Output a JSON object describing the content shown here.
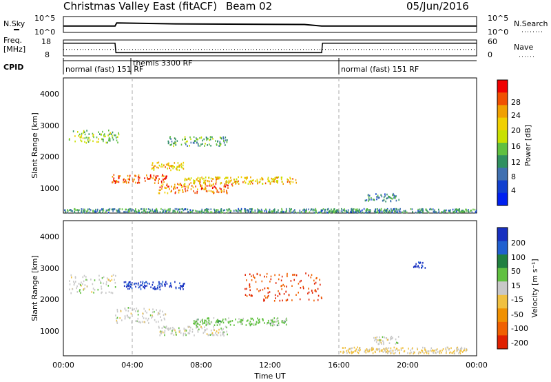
{
  "header": {
    "title": "Christmas Valley East (fitACF)",
    "beam": "Beam 02",
    "date": "05/Jun/2016"
  },
  "panels": {
    "nsky": {
      "label": "N.Sky",
      "ticks_left": [
        "10^5",
        "10^0"
      ],
      "ticks_right": [
        "10^5",
        "10^0"
      ],
      "right_label": "N.Search"
    },
    "freq": {
      "label_line1": "Freq.",
      "label_line2": "[MHz]",
      "ticks_left": [
        "18",
        "8"
      ],
      "ticks_right": [
        "60",
        "0"
      ],
      "right_label": "Nave"
    },
    "cpid": {
      "label": "CPID",
      "segments": [
        "normal (fast) 151 RF",
        "themis 3300 RF",
        "normal (fast) 151 RF"
      ]
    }
  },
  "power_colorbar": {
    "label": "Power [dB]",
    "ticks": [
      "28",
      "24",
      "20",
      "16",
      "12",
      "8",
      "4"
    ],
    "colors": [
      "#f00000",
      "#f05000",
      "#f0a000",
      "#f0d000",
      "#c8e000",
      "#60c040",
      "#309060",
      "#4070b0",
      "#1040d0",
      "#0020f0"
    ]
  },
  "velocity_colorbar": {
    "label": "Velocity [m s⁻¹]",
    "ticks": [
      "200",
      "100",
      "50",
      "15",
      "-15",
      "-50",
      "-100",
      "-200"
    ],
    "colors": [
      "#1830c0",
      "#2060d0",
      "#208040",
      "#60c040",
      "#c8c8c8",
      "#f0c040",
      "#f09000",
      "#f06000",
      "#e02000"
    ]
  },
  "xaxis": {
    "label": "Time UT",
    "ticks": [
      "00:00",
      "04:00",
      "08:00",
      "12:00",
      "16:00",
      "20:00",
      "00:00"
    ]
  },
  "yaxis": {
    "label": "Slant Range [km]",
    "ticks": [
      "4000",
      "3000",
      "2000",
      "1000"
    ]
  },
  "chart_data": [
    {
      "type": "line",
      "title": "N.Sky",
      "x_units": "hours UT",
      "series": [
        {
          "name": "N.Sky",
          "x": [
            0,
            3,
            3.1,
            6.5,
            14,
            15,
            24
          ],
          "y": [
            2.0,
            2.0,
            3.0,
            2.7,
            2.5,
            2.0,
            2.0
          ]
        }
      ]
    },
    {
      "type": "line",
      "title": "Freq.",
      "x_units": "hours UT",
      "series": [
        {
          "name": "Freq.",
          "x": [
            0,
            3,
            3.05,
            15,
            15.05,
            24
          ],
          "y": [
            16,
            16,
            10,
            10,
            16,
            16
          ]
        },
        {
          "name": "Nave",
          "x": [
            0,
            24
          ],
          "y": [
            24,
            24
          ]
        }
      ]
    },
    {
      "type": "heatmap",
      "title": "Power [dB]",
      "xlabel": "Time UT",
      "ylabel": "Slant Range [km]",
      "xlim": [
        0,
        24
      ],
      "ylim": [
        180,
        4500
      ],
      "zlim": [
        0,
        30
      ],
      "features": [
        {
          "t_start": 0.3,
          "t_end": 3.2,
          "range_center_km": 2650,
          "range_width_km": 400,
          "power_db": 14
        },
        {
          "t_start": 2.8,
          "t_end": 6.0,
          "range_center_km": 1300,
          "range_width_km": 280,
          "power_db": 26
        },
        {
          "t_start": 5.5,
          "t_end": 9.8,
          "range_center_km": 1000,
          "range_width_km": 320,
          "power_db": 24
        },
        {
          "t_start": 5.0,
          "t_end": 7.0,
          "range_center_km": 1700,
          "range_width_km": 250,
          "power_db": 20
        },
        {
          "t_start": 7.0,
          "t_end": 13.5,
          "range_center_km": 1250,
          "range_width_km": 220,
          "power_db": 20
        },
        {
          "t_start": 6.0,
          "t_end": 9.5,
          "range_center_km": 2500,
          "range_width_km": 300,
          "power_db": 12
        },
        {
          "t_start": 17.5,
          "t_end": 19.5,
          "range_center_km": 700,
          "range_width_km": 250,
          "power_db": 10
        },
        {
          "t_start": 0.0,
          "t_end": 24.0,
          "range_center_km": 280,
          "range_width_km": 120,
          "power_db": 10
        }
      ]
    },
    {
      "type": "heatmap",
      "title": "Velocity [m s⁻¹]",
      "xlabel": "Time UT",
      "ylabel": "Slant Range [km]",
      "xlim": [
        0,
        24
      ],
      "ylim": [
        180,
        4500
      ],
      "zlim": [
        -200,
        200
      ],
      "features": [
        {
          "t_start": 0.3,
          "t_end": 3.0,
          "range_center_km": 2500,
          "range_width_km": 600,
          "velocity": 0
        },
        {
          "t_start": 3.0,
          "t_end": 6.0,
          "range_center_km": 1500,
          "range_width_km": 500,
          "velocity": 0
        },
        {
          "t_start": 5.5,
          "t_end": 9.5,
          "range_center_km": 1000,
          "range_width_km": 300,
          "velocity": 0
        },
        {
          "t_start": 7.5,
          "t_end": 13.0,
          "range_center_km": 1300,
          "range_width_km": 250,
          "velocity": 40
        },
        {
          "t_start": 3.5,
          "t_end": 7.0,
          "range_center_km": 2450,
          "range_width_km": 250,
          "velocity": 170
        },
        {
          "t_start": 10.5,
          "t_end": 15.0,
          "range_center_km": 2400,
          "range_width_km": 900,
          "velocity": -160
        },
        {
          "t_start": 16.0,
          "t_end": 23.5,
          "range_center_km": 380,
          "range_width_km": 200,
          "velocity": -30
        },
        {
          "t_start": 18.0,
          "t_end": 19.5,
          "range_center_km": 700,
          "range_width_km": 250,
          "velocity": 0
        },
        {
          "t_start": 20.3,
          "t_end": 21.0,
          "range_center_km": 3100,
          "range_width_km": 200,
          "velocity": 180
        }
      ]
    }
  ]
}
